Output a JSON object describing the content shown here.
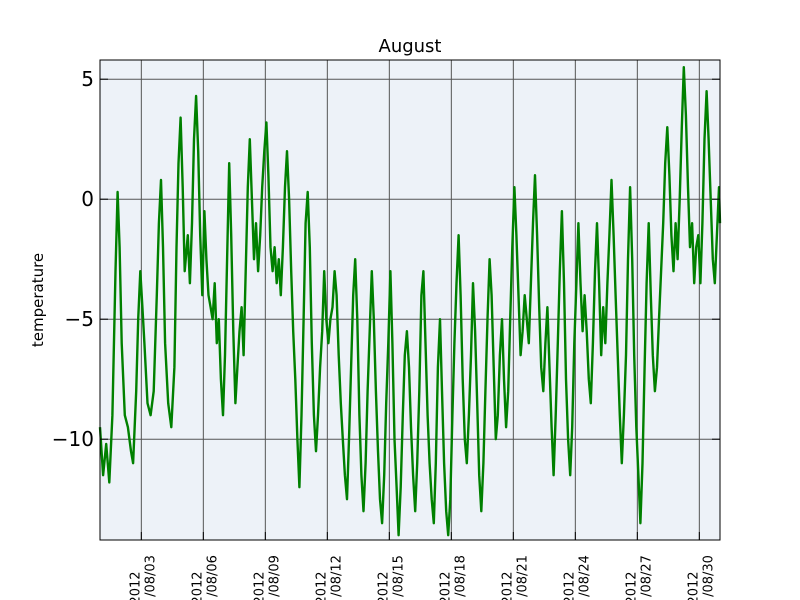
{
  "chart_data": {
    "type": "line",
    "title": "August",
    "xlabel": "",
    "ylabel": "temperature",
    "x_range": [
      "2012/08/01",
      "2012/08/31"
    ],
    "ylim": [
      -14.2,
      5.8
    ],
    "grid": true,
    "y_ticks": [
      {
        "value": 5,
        "label": "5"
      },
      {
        "value": 0,
        "label": "0"
      },
      {
        "value": -5,
        "label": "−5"
      },
      {
        "value": -10,
        "label": "−10"
      }
    ],
    "x_ticks": [
      {
        "day": 3,
        "year": "2012",
        "date": "/08/03"
      },
      {
        "day": 6,
        "year": "2012",
        "date": "/08/06"
      },
      {
        "day": 9,
        "year": "2012",
        "date": "/08/09"
      },
      {
        "day": 12,
        "year": "2012",
        "date": "/08/12"
      },
      {
        "day": 15,
        "year": "2012",
        "date": "/08/15"
      },
      {
        "day": 18,
        "year": "2012",
        "date": "/08/18"
      },
      {
        "day": 21,
        "year": "2012",
        "date": "/08/21"
      },
      {
        "day": 24,
        "year": "2012",
        "date": "/08/24"
      },
      {
        "day": 27,
        "year": "2012",
        "date": "/08/27"
      },
      {
        "day": 30,
        "year": "2012",
        "date": "/08/30"
      }
    ],
    "series": [
      {
        "color": "#008000",
        "x_unit": "day of August 2012",
        "points": [
          [
            1.0,
            -9.5
          ],
          [
            1.15,
            -11.5
          ],
          [
            1.3,
            -10.2
          ],
          [
            1.45,
            -11.8
          ],
          [
            1.6,
            -9.0
          ],
          [
            1.75,
            -3.0
          ],
          [
            1.85,
            0.3
          ],
          [
            1.95,
            -2.0
          ],
          [
            2.05,
            -6.0
          ],
          [
            2.2,
            -9.0
          ],
          [
            2.35,
            -9.5
          ],
          [
            2.5,
            -10.5
          ],
          [
            2.6,
            -11.0
          ],
          [
            2.75,
            -8.0
          ],
          [
            2.85,
            -5.0
          ],
          [
            2.95,
            -3.0
          ],
          [
            3.05,
            -4.5
          ],
          [
            3.15,
            -6.0
          ],
          [
            3.3,
            -8.5
          ],
          [
            3.45,
            -9.0
          ],
          [
            3.6,
            -8.0
          ],
          [
            3.75,
            -4.0
          ],
          [
            3.85,
            -1.0
          ],
          [
            3.95,
            0.8
          ],
          [
            4.05,
            -2.0
          ],
          [
            4.15,
            -6.0
          ],
          [
            4.3,
            -8.5
          ],
          [
            4.45,
            -9.5
          ],
          [
            4.6,
            -7.0
          ],
          [
            4.7,
            -2.0
          ],
          [
            4.8,
            1.5
          ],
          [
            4.9,
            3.4
          ],
          [
            5.0,
            0.5
          ],
          [
            5.1,
            -3.0
          ],
          [
            5.25,
            -1.5
          ],
          [
            5.35,
            -3.5
          ],
          [
            5.45,
            -1.0
          ],
          [
            5.55,
            2.5
          ],
          [
            5.65,
            4.3
          ],
          [
            5.75,
            2.0
          ],
          [
            5.85,
            -1.5
          ],
          [
            5.95,
            -4.0
          ],
          [
            6.05,
            -0.5
          ],
          [
            6.15,
            -2.5
          ],
          [
            6.25,
            -4.0
          ],
          [
            6.35,
            -4.5
          ],
          [
            6.45,
            -5.0
          ],
          [
            6.55,
            -3.5
          ],
          [
            6.65,
            -6.0
          ],
          [
            6.75,
            -5.0
          ],
          [
            6.85,
            -7.5
          ],
          [
            6.95,
            -9.0
          ],
          [
            7.05,
            -6.5
          ],
          [
            7.15,
            -2.5
          ],
          [
            7.25,
            1.5
          ],
          [
            7.35,
            -1.5
          ],
          [
            7.45,
            -5.5
          ],
          [
            7.55,
            -8.5
          ],
          [
            7.65,
            -7.0
          ],
          [
            7.75,
            -5.5
          ],
          [
            7.85,
            -4.5
          ],
          [
            7.95,
            -6.5
          ],
          [
            8.05,
            -3.0
          ],
          [
            8.15,
            0.5
          ],
          [
            8.25,
            2.5
          ],
          [
            8.35,
            0.0
          ],
          [
            8.45,
            -2.5
          ],
          [
            8.55,
            -1.0
          ],
          [
            8.65,
            -3.0
          ],
          [
            8.75,
            -1.5
          ],
          [
            8.85,
            0.5
          ],
          [
            8.95,
            2.0
          ],
          [
            9.05,
            3.2
          ],
          [
            9.15,
            1.0
          ],
          [
            9.25,
            -2.0
          ],
          [
            9.35,
            -3.0
          ],
          [
            9.45,
            -2.0
          ],
          [
            9.55,
            -3.5
          ],
          [
            9.65,
            -2.5
          ],
          [
            9.75,
            -4.0
          ],
          [
            9.85,
            -2.0
          ],
          [
            9.95,
            0.5
          ],
          [
            10.05,
            2.0
          ],
          [
            10.15,
            0.0
          ],
          [
            10.25,
            -3.0
          ],
          [
            10.35,
            -5.5
          ],
          [
            10.45,
            -7.5
          ],
          [
            10.55,
            -10.0
          ],
          [
            10.65,
            -12.0
          ],
          [
            10.75,
            -9.0
          ],
          [
            10.85,
            -5.0
          ],
          [
            10.95,
            -1.0
          ],
          [
            11.05,
            0.3
          ],
          [
            11.15,
            -2.0
          ],
          [
            11.25,
            -6.0
          ],
          [
            11.35,
            -9.0
          ],
          [
            11.45,
            -10.5
          ],
          [
            11.55,
            -9.0
          ],
          [
            11.65,
            -7.0
          ],
          [
            11.75,
            -5.5
          ],
          [
            11.85,
            -3.0
          ],
          [
            11.95,
            -5.0
          ],
          [
            12.05,
            -6.0
          ],
          [
            12.15,
            -5.0
          ],
          [
            12.25,
            -4.5
          ],
          [
            12.35,
            -3.0
          ],
          [
            12.45,
            -4.0
          ],
          [
            12.55,
            -6.5
          ],
          [
            12.65,
            -8.5
          ],
          [
            12.75,
            -10.0
          ],
          [
            12.85,
            -11.5
          ],
          [
            12.95,
            -12.5
          ],
          [
            13.05,
            -10.0
          ],
          [
            13.15,
            -7.0
          ],
          [
            13.25,
            -4.0
          ],
          [
            13.35,
            -2.5
          ],
          [
            13.45,
            -5.0
          ],
          [
            13.55,
            -9.0
          ],
          [
            13.65,
            -11.5
          ],
          [
            13.75,
            -13.0
          ],
          [
            13.85,
            -11.0
          ],
          [
            13.95,
            -8.0
          ],
          [
            14.05,
            -5.5
          ],
          [
            14.15,
            -3.0
          ],
          [
            14.25,
            -5.0
          ],
          [
            14.35,
            -8.0
          ],
          [
            14.45,
            -10.5
          ],
          [
            14.55,
            -12.5
          ],
          [
            14.65,
            -13.5
          ],
          [
            14.75,
            -11.5
          ],
          [
            14.85,
            -8.5
          ],
          [
            14.95,
            -6.0
          ],
          [
            15.05,
            -3.0
          ],
          [
            15.15,
            -6.0
          ],
          [
            15.25,
            -10.0
          ],
          [
            15.35,
            -12.0
          ],
          [
            15.45,
            -14.0
          ],
          [
            15.55,
            -12.0
          ],
          [
            15.65,
            -9.0
          ],
          [
            15.75,
            -6.5
          ],
          [
            15.85,
            -5.5
          ],
          [
            15.95,
            -7.0
          ],
          [
            16.05,
            -9.5
          ],
          [
            16.15,
            -11.5
          ],
          [
            16.25,
            -13.0
          ],
          [
            16.35,
            -11.0
          ],
          [
            16.45,
            -8.0
          ],
          [
            16.55,
            -4.0
          ],
          [
            16.65,
            -3.0
          ],
          [
            16.75,
            -6.0
          ],
          [
            16.85,
            -9.0
          ],
          [
            16.95,
            -11.0
          ],
          [
            17.05,
            -12.5
          ],
          [
            17.15,
            -13.5
          ],
          [
            17.25,
            -11.0
          ],
          [
            17.35,
            -7.0
          ],
          [
            17.45,
            -5.0
          ],
          [
            17.55,
            -8.0
          ],
          [
            17.65,
            -11.0
          ],
          [
            17.75,
            -13.0
          ],
          [
            17.85,
            -14.0
          ],
          [
            17.95,
            -12.5
          ],
          [
            18.05,
            -9.0
          ],
          [
            18.15,
            -6.0
          ],
          [
            18.25,
            -3.5
          ],
          [
            18.35,
            -1.5
          ],
          [
            18.45,
            -4.0
          ],
          [
            18.55,
            -7.5
          ],
          [
            18.65,
            -10.0
          ],
          [
            18.75,
            -11.0
          ],
          [
            18.85,
            -9.0
          ],
          [
            18.95,
            -6.5
          ],
          [
            19.05,
            -3.5
          ],
          [
            19.15,
            -5.5
          ],
          [
            19.25,
            -8.5
          ],
          [
            19.35,
            -11.5
          ],
          [
            19.45,
            -13.0
          ],
          [
            19.55,
            -11.0
          ],
          [
            19.65,
            -8.0
          ],
          [
            19.75,
            -5.0
          ],
          [
            19.85,
            -2.5
          ],
          [
            19.95,
            -4.0
          ],
          [
            20.05,
            -7.0
          ],
          [
            20.15,
            -10.0
          ],
          [
            20.25,
            -9.0
          ],
          [
            20.35,
            -6.5
          ],
          [
            20.45,
            -5.0
          ],
          [
            20.55,
            -7.5
          ],
          [
            20.65,
            -9.5
          ],
          [
            20.75,
            -8.0
          ],
          [
            20.85,
            -5.0
          ],
          [
            20.95,
            -2.0
          ],
          [
            21.05,
            0.5
          ],
          [
            21.15,
            -1.5
          ],
          [
            21.25,
            -4.0
          ],
          [
            21.35,
            -6.5
          ],
          [
            21.45,
            -5.5
          ],
          [
            21.55,
            -4.0
          ],
          [
            21.65,
            -5.0
          ],
          [
            21.75,
            -6.0
          ],
          [
            21.85,
            -3.5
          ],
          [
            21.95,
            -1.0
          ],
          [
            22.05,
            1.0
          ],
          [
            22.15,
            -1.5
          ],
          [
            22.25,
            -4.5
          ],
          [
            22.35,
            -7.0
          ],
          [
            22.45,
            -8.0
          ],
          [
            22.55,
            -6.0
          ],
          [
            22.65,
            -4.5
          ],
          [
            22.75,
            -7.0
          ],
          [
            22.85,
            -9.5
          ],
          [
            22.95,
            -11.5
          ],
          [
            23.05,
            -9.0
          ],
          [
            23.15,
            -6.0
          ],
          [
            23.25,
            -3.0
          ],
          [
            23.35,
            -0.5
          ],
          [
            23.45,
            -3.5
          ],
          [
            23.55,
            -7.5
          ],
          [
            23.65,
            -10.0
          ],
          [
            23.75,
            -11.5
          ],
          [
            23.85,
            -9.5
          ],
          [
            23.95,
            -6.0
          ],
          [
            24.05,
            -3.5
          ],
          [
            24.15,
            -1.0
          ],
          [
            24.25,
            -3.5
          ],
          [
            24.35,
            -5.5
          ],
          [
            24.45,
            -4.0
          ],
          [
            24.55,
            -5.5
          ],
          [
            24.65,
            -7.5
          ],
          [
            24.75,
            -8.5
          ],
          [
            24.85,
            -6.0
          ],
          [
            24.95,
            -3.0
          ],
          [
            25.05,
            -1.0
          ],
          [
            25.15,
            -3.5
          ],
          [
            25.25,
            -6.5
          ],
          [
            25.35,
            -4.5
          ],
          [
            25.45,
            -6.0
          ],
          [
            25.55,
            -3.5
          ],
          [
            25.65,
            -1.5
          ],
          [
            25.75,
            0.8
          ],
          [
            25.85,
            -1.5
          ],
          [
            25.95,
            -4.0
          ],
          [
            26.05,
            -6.5
          ],
          [
            26.15,
            -9.0
          ],
          [
            26.25,
            -11.0
          ],
          [
            26.35,
            -9.0
          ],
          [
            26.45,
            -6.5
          ],
          [
            26.55,
            -2.5
          ],
          [
            26.65,
            0.5
          ],
          [
            26.75,
            -2.5
          ],
          [
            26.85,
            -6.5
          ],
          [
            26.95,
            -9.5
          ],
          [
            27.05,
            -11.5
          ],
          [
            27.15,
            -13.5
          ],
          [
            27.25,
            -11.0
          ],
          [
            27.35,
            -7.0
          ],
          [
            27.45,
            -3.5
          ],
          [
            27.55,
            -1.0
          ],
          [
            27.65,
            -4.0
          ],
          [
            27.75,
            -6.5
          ],
          [
            27.85,
            -8.0
          ],
          [
            27.95,
            -7.0
          ],
          [
            28.05,
            -5.0
          ],
          [
            28.15,
            -3.0
          ],
          [
            28.25,
            -1.0
          ],
          [
            28.35,
            1.5
          ],
          [
            28.45,
            3.0
          ],
          [
            28.55,
            1.0
          ],
          [
            28.65,
            -1.5
          ],
          [
            28.75,
            -3.0
          ],
          [
            28.85,
            -1.0
          ],
          [
            28.95,
            -2.5
          ],
          [
            29.05,
            0.0
          ],
          [
            29.15,
            3.0
          ],
          [
            29.25,
            5.5
          ],
          [
            29.35,
            3.5
          ],
          [
            29.45,
            0.5
          ],
          [
            29.55,
            -2.0
          ],
          [
            29.65,
            -1.0
          ],
          [
            29.75,
            -3.5
          ],
          [
            29.85,
            -2.0
          ],
          [
            29.95,
            -1.5
          ],
          [
            30.05,
            -3.5
          ],
          [
            30.15,
            -1.0
          ],
          [
            30.25,
            2.5
          ],
          [
            30.35,
            4.5
          ],
          [
            30.45,
            2.5
          ],
          [
            30.55,
            0.0
          ],
          [
            30.65,
            -2.5
          ],
          [
            30.75,
            -3.5
          ],
          [
            30.85,
            -1.5
          ],
          [
            30.95,
            0.5
          ],
          [
            31.0,
            -1.0
          ]
        ]
      }
    ]
  }
}
